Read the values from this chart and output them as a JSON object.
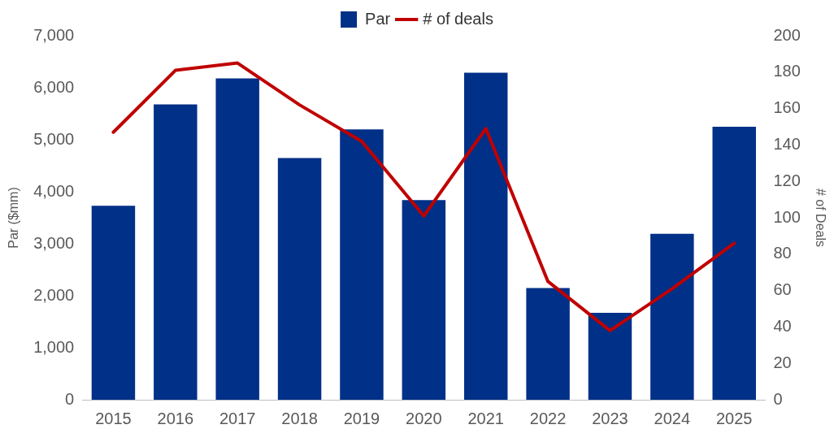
{
  "chart_data": {
    "type": "bar",
    "ylabel": "Par ($mm)",
    "y2label": "# of Deals",
    "categories": [
      "2015",
      "2016",
      "2017",
      "2018",
      "2019",
      "2020",
      "2021",
      "2022",
      "2023",
      "2024",
      "2025"
    ],
    "series": [
      {
        "name": "Par",
        "color": "#003087",
        "values": [
          3730,
          5680,
          6180,
          4650,
          5200,
          3840,
          6290,
          2150,
          1670,
          3190,
          5250
        ]
      },
      {
        "name": "# of deals",
        "type": "line",
        "axis": "y2",
        "color": "#c00000",
        "marker": "none",
        "line_style": "solid",
        "values": [
          147,
          181,
          185,
          162,
          142,
          101,
          149,
          65,
          38,
          61,
          86
        ]
      }
    ],
    "ylim": [
      0,
      7000
    ],
    "yticks": [
      0,
      {
        "value": 1000,
        "label": "1,000"
      },
      {
        "value": 2000,
        "label": "2,000"
      },
      {
        "value": 3000,
        "label": "3,000"
      },
      {
        "value": 4000,
        "label": "4,000"
      },
      {
        "value": 5000,
        "label": "5,000"
      },
      {
        "value": 6000,
        "label": "6,000"
      },
      {
        "value": 7000,
        "label": "7,000"
      }
    ],
    "y2lim": [
      0,
      200
    ],
    "y2ticks": [
      0,
      20,
      40,
      60,
      80,
      100,
      120,
      140,
      160,
      180,
      200
    ],
    "grid": false,
    "legend": "top"
  }
}
